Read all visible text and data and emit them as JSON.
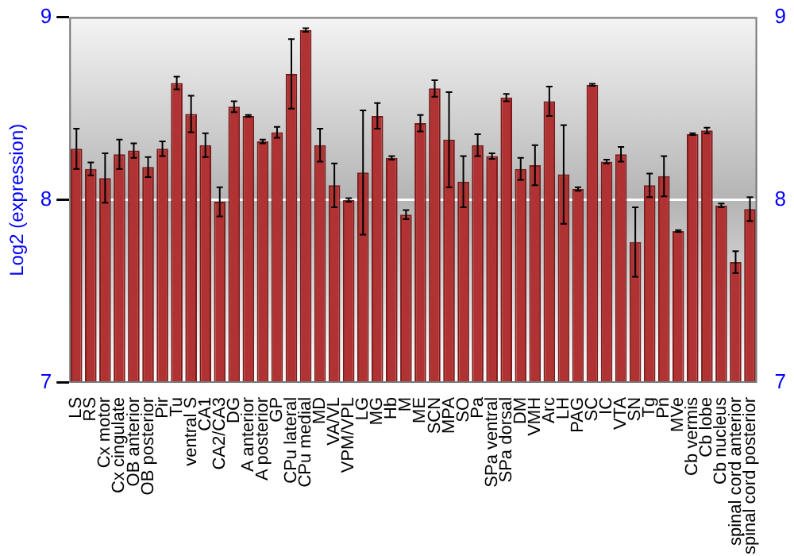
{
  "chart_data": {
    "type": "bar",
    "ylabel": "Log2 (expression)",
    "categories": [
      "LS",
      "RS",
      "Cx motor",
      "Cx cingulate",
      "OB anterior",
      "OB posterior",
      "Pir",
      "Tu",
      "ventral S",
      "CA1",
      "CA2/CA3",
      "DG",
      "A anterior",
      "A posterior",
      "GP",
      "CPu lateral",
      "CPu medial",
      "MD",
      "VA/VL",
      "VPM/VPL",
      "LG",
      "MG",
      "Hb",
      "M",
      "ME",
      "SCN",
      "MPA",
      "SO",
      "Pa",
      "SPa ventral",
      "SPa dorsal",
      "DM",
      "VMH",
      "Arc",
      "LH",
      "PAG",
      "SC",
      "IC",
      "VTA",
      "SN",
      "Tg",
      "Pn",
      "MVe",
      "Cb vermis",
      "Cb lobe",
      "Cb nucleus",
      "spinal cord anterior",
      "spinal cord posterior"
    ],
    "values": [
      8.28,
      8.17,
      8.12,
      8.25,
      8.27,
      8.18,
      8.28,
      8.64,
      8.47,
      8.3,
      7.99,
      8.51,
      8.46,
      8.32,
      8.37,
      8.69,
      8.93,
      8.3,
      8.08,
      8.0,
      8.15,
      8.46,
      8.23,
      7.92,
      8.42,
      8.61,
      8.33,
      8.1,
      8.3,
      8.24,
      8.56,
      8.17,
      8.19,
      8.54,
      8.14,
      8.06,
      8.63,
      8.21,
      8.25,
      7.77,
      8.08,
      8.13,
      7.83,
      8.36,
      8.38,
      7.97,
      7.66,
      7.95
    ],
    "errors": [
      0.11,
      0.035,
      0.135,
      0.08,
      0.04,
      0.055,
      0.04,
      0.035,
      0.1,
      0.065,
      0.08,
      0.03,
      0.005,
      0.01,
      0.03,
      0.19,
      0.01,
      0.09,
      0.12,
      0.01,
      0.34,
      0.07,
      0.01,
      0.025,
      0.045,
      0.045,
      0.26,
      0.14,
      0.06,
      0.015,
      0.02,
      0.06,
      0.11,
      0.08,
      0.27,
      0.01,
      0.005,
      0.01,
      0.04,
      0.19,
      0.065,
      0.11,
      0.005,
      0.005,
      0.015,
      0.01,
      0.06,
      0.065
    ],
    "color": "#b03232",
    "ylim": [
      7,
      9
    ],
    "yticks": [
      7,
      8,
      9
    ],
    "y2lim": [
      7,
      9
    ],
    "y2ticks": [
      7,
      8,
      9
    ],
    "grid": "y",
    "legend": false
  }
}
